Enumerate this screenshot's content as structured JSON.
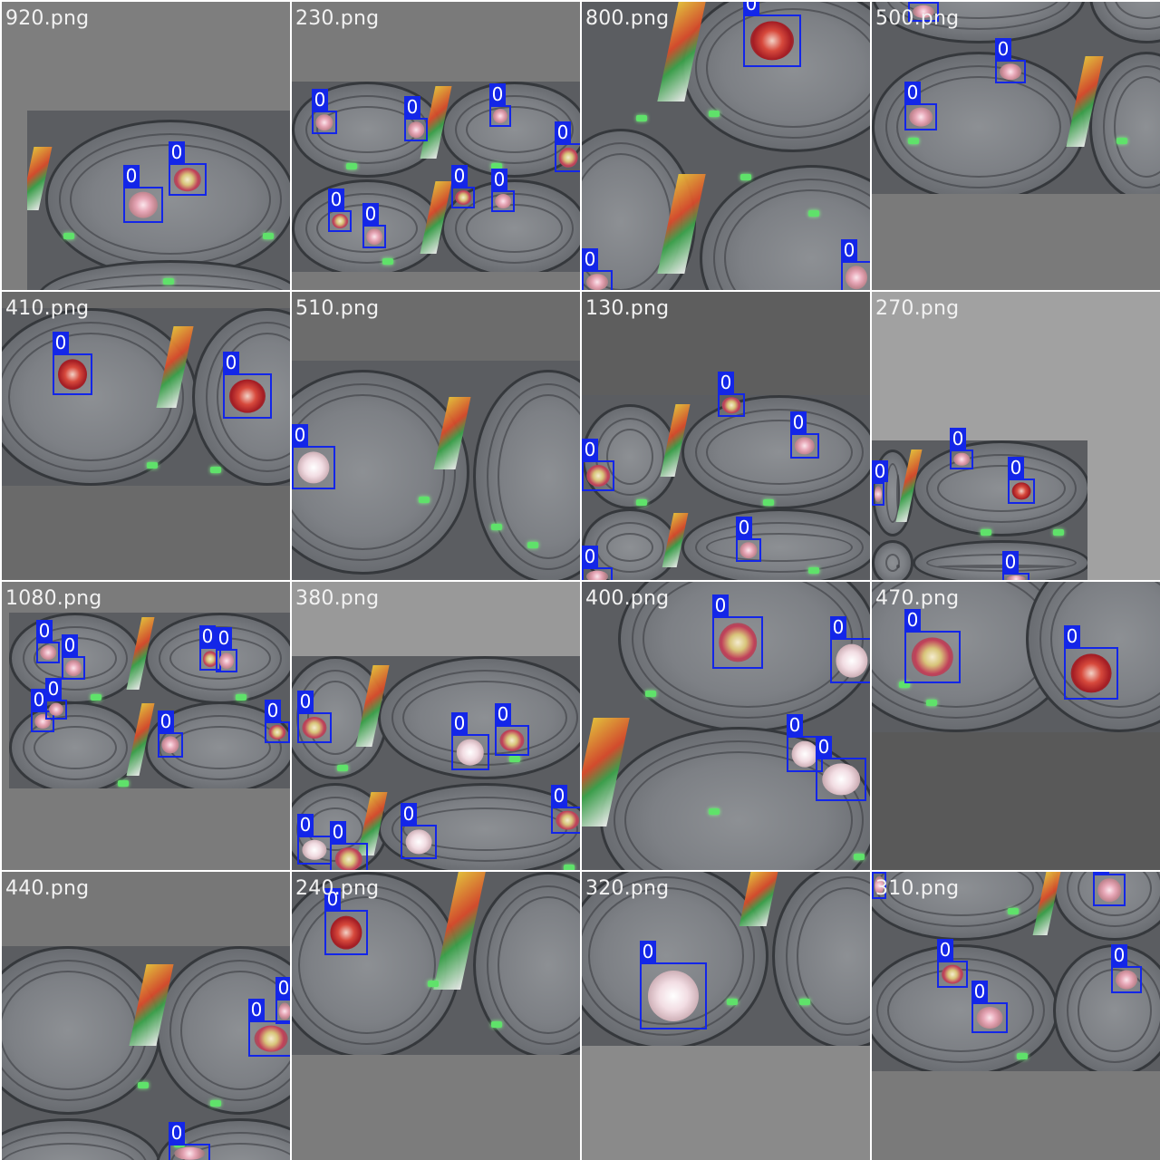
{
  "grid": {
    "tiles": [
      {
        "label": "920.png",
        "boxes": [
          {
            "cls": "0"
          },
          {
            "cls": "0"
          }
        ]
      },
      {
        "label": "230.png",
        "boxes": [
          {
            "cls": "0"
          },
          {
            "cls": "0"
          },
          {
            "cls": "0"
          },
          {
            "cls": "0"
          },
          {
            "cls": "0"
          },
          {
            "cls": "0"
          },
          {
            "cls": "0"
          },
          {
            "cls": "0"
          }
        ]
      },
      {
        "label": "800.png",
        "boxes": [
          {
            "cls": "0"
          },
          {
            "cls": "0"
          },
          {
            "cls": "0"
          }
        ]
      },
      {
        "label": "500.png",
        "boxes": [
          {
            "cls": "0"
          },
          {
            "cls": "0"
          },
          {
            "cls": "0"
          }
        ]
      },
      {
        "label": "410.png",
        "boxes": [
          {
            "cls": "0"
          },
          {
            "cls": "0"
          }
        ]
      },
      {
        "label": "510.png",
        "boxes": [
          {
            "cls": "0"
          }
        ]
      },
      {
        "label": "130.png",
        "boxes": [
          {
            "cls": "0"
          },
          {
            "cls": "0"
          },
          {
            "cls": "0"
          },
          {
            "cls": "0"
          },
          {
            "cls": "0"
          }
        ]
      },
      {
        "label": "270.png",
        "boxes": [
          {
            "cls": "0"
          },
          {
            "cls": "0"
          },
          {
            "cls": "0"
          },
          {
            "cls": "0"
          }
        ]
      },
      {
        "label": "1080.png",
        "boxes": [
          {
            "cls": "0"
          },
          {
            "cls": "0"
          },
          {
            "cls": "0"
          },
          {
            "cls": "0"
          },
          {
            "cls": "0"
          },
          {
            "cls": "0"
          },
          {
            "cls": "0"
          },
          {
            "cls": "0"
          }
        ]
      },
      {
        "label": "380.png",
        "boxes": [
          {
            "cls": "0"
          },
          {
            "cls": "0"
          },
          {
            "cls": "0"
          },
          {
            "cls": "0"
          },
          {
            "cls": "0"
          },
          {
            "cls": "0"
          },
          {
            "cls": "0"
          },
          {
            "cls": "0"
          }
        ]
      },
      {
        "label": "400.png",
        "boxes": [
          {
            "cls": "0"
          },
          {
            "cls": "0"
          },
          {
            "cls": "0"
          },
          {
            "cls": "0"
          }
        ]
      },
      {
        "label": "470.png",
        "boxes": [
          {
            "cls": "0"
          },
          {
            "cls": "0"
          }
        ]
      },
      {
        "label": "440.png",
        "boxes": [
          {
            "cls": "0"
          },
          {
            "cls": "0"
          },
          {
            "cls": "0"
          }
        ]
      },
      {
        "label": "240.png",
        "boxes": [
          {
            "cls": "0"
          }
        ]
      },
      {
        "label": "320.png",
        "boxes": [
          {
            "cls": "0"
          }
        ]
      },
      {
        "label": "310.png",
        "boxes": [
          {
            "cls": "0"
          },
          {
            "cls": "0"
          },
          {
            "cls": "0"
          },
          {
            "cls": "0"
          },
          {
            "cls": "0"
          }
        ]
      }
    ]
  },
  "colors": {
    "box_outline": "#1326e8",
    "box_label_bg": "#1326e8",
    "box_label_text": "#ffffff",
    "tile_label_text": "#f2f2f2",
    "led": "#5fe26a"
  }
}
